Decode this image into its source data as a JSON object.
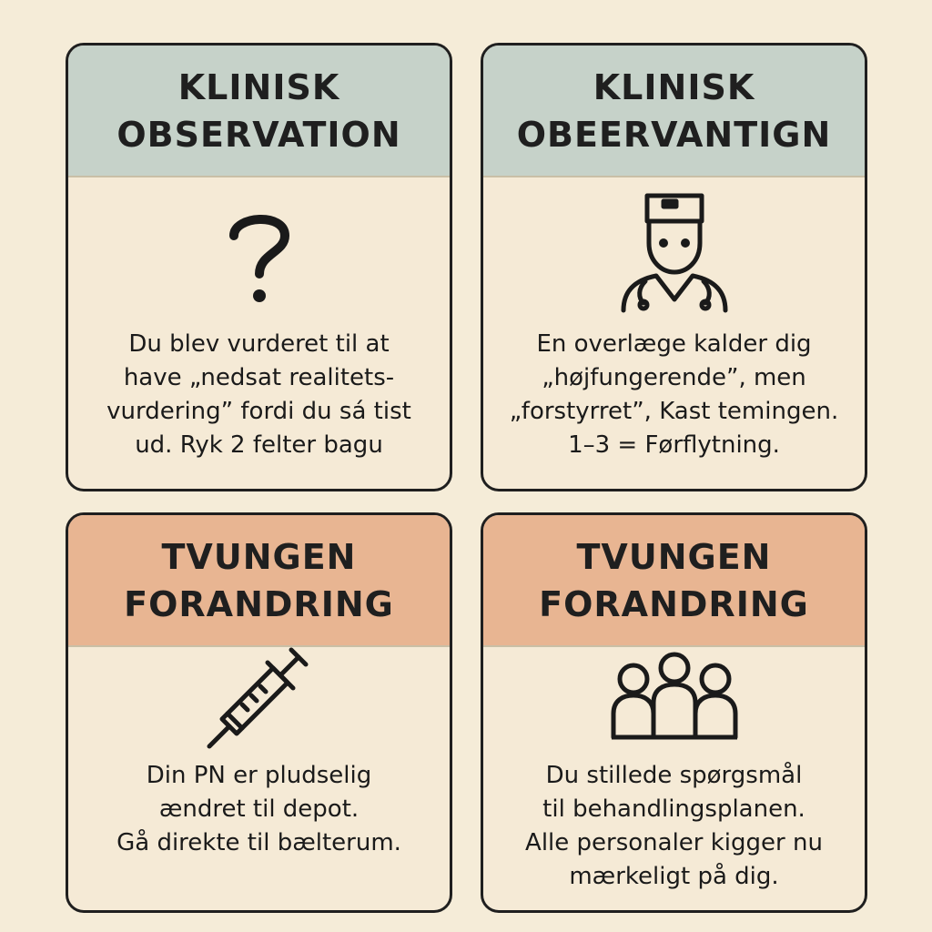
{
  "cards": [
    {
      "header_lines": [
        "KLINISK",
        "OBSERVATION"
      ],
      "icon": "question-mark-icon",
      "text_lines": [
        "Du blev vurderet til at",
        "have „nedsat realitets-",
        "vurdering” fordi du sá tist",
        "ud. Ryk 2 felter bagu"
      ]
    },
    {
      "header_lines": [
        "KLINISK",
        "OBEERVANTIGN"
      ],
      "icon": "doctor-icon",
      "text_lines": [
        "En overlæge kalder dig",
        "„højfungerende”, men",
        "„forstyrret”, Kast temingen.",
        "1–3 = Førflytning."
      ]
    },
    {
      "header_lines": [
        "TVUNGEN",
        "FORANDRING"
      ],
      "icon": "syringe-icon",
      "text_lines": [
        "Din PN er pludselig",
        "ændret til depot.",
        "Gå direkte til bælterum."
      ]
    },
    {
      "header_lines": [
        "TVUNGEN",
        "FORANDRING"
      ],
      "icon": "group-icon",
      "text_lines": [
        "Du stillede spørgsmål",
        "til behandlingsplanen.",
        "Alle personaler kigger nu",
        "mærkeligt på dig."
      ]
    }
  ],
  "colors": {
    "background": "#f5ecd8",
    "card_fill": "#f5ead6",
    "clinical_header": "#c6d2c9",
    "forced_header": "#e8b592",
    "outline": "#1f1f1f"
  }
}
